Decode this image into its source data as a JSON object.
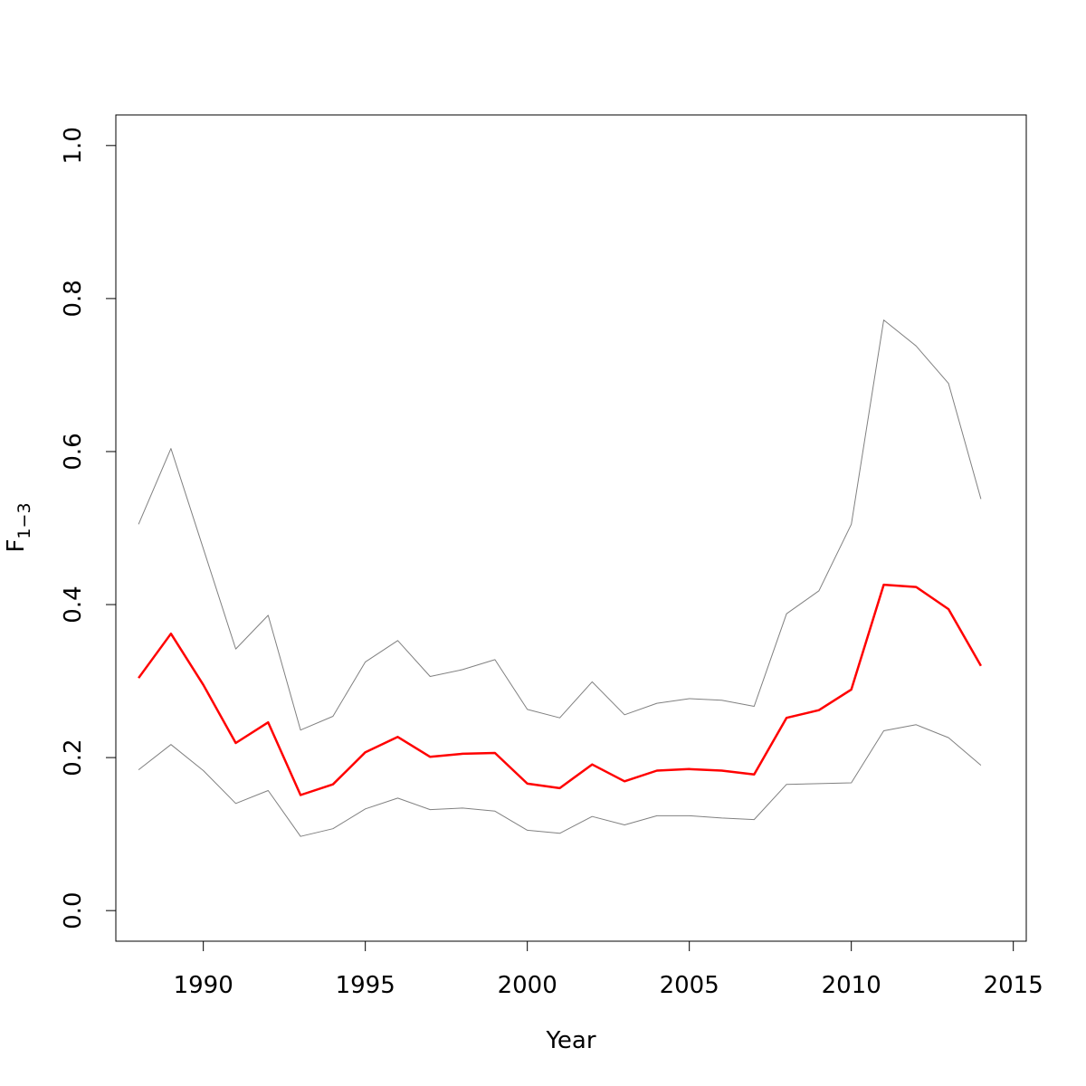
{
  "chart_data": {
    "type": "line",
    "xlabel": "Year",
    "ylabel_main": "F",
    "ylabel_sub": "1−3",
    "xlim": [
      1987.3,
      2015.4
    ],
    "ylim": [
      -0.04,
      1.04
    ],
    "x_ticks": [
      1990,
      1995,
      2000,
      2005,
      2010,
      2015
    ],
    "y_ticks": [
      0.0,
      0.2,
      0.4,
      0.6,
      0.8,
      1.0
    ],
    "x_tick_labels": [
      "1990",
      "1995",
      "2000",
      "2005",
      "2010",
      "2015"
    ],
    "y_tick_labels": [
      "0.0",
      "0.2",
      "0.4",
      "0.6",
      "0.8",
      "1.0"
    ],
    "x": [
      1988,
      1989,
      1990,
      1991,
      1992,
      1993,
      1994,
      1995,
      1996,
      1997,
      1998,
      1999,
      2000,
      2001,
      2002,
      2003,
      2004,
      2005,
      2006,
      2007,
      2008,
      2009,
      2010,
      2011,
      2012,
      2013,
      2014
    ],
    "series": [
      {
        "role": "estimate",
        "color": "#ff0000",
        "values": [
          0.304,
          0.362,
          0.295,
          0.219,
          0.246,
          0.151,
          0.165,
          0.207,
          0.227,
          0.201,
          0.205,
          0.206,
          0.166,
          0.16,
          0.191,
          0.169,
          0.183,
          0.185,
          0.183,
          0.178,
          0.252,
          0.262,
          0.289,
          0.426,
          0.423,
          0.394,
          0.32
        ]
      },
      {
        "role": "upper",
        "color": "#808080",
        "values": [
          0.505,
          0.604,
          0.473,
          0.342,
          0.386,
          0.236,
          0.254,
          0.325,
          0.353,
          0.306,
          0.315,
          0.328,
          0.263,
          0.252,
          0.299,
          0.256,
          0.271,
          0.277,
          0.275,
          0.267,
          0.388,
          0.418,
          0.505,
          0.772,
          0.738,
          0.689,
          0.538
        ]
      },
      {
        "role": "lower",
        "color": "#808080",
        "values": [
          0.184,
          0.217,
          0.183,
          0.14,
          0.157,
          0.097,
          0.107,
          0.133,
          0.147,
          0.132,
          0.134,
          0.13,
          0.105,
          0.101,
          0.123,
          0.112,
          0.124,
          0.124,
          0.121,
          0.119,
          0.165,
          0.166,
          0.167,
          0.235,
          0.243,
          0.226,
          0.19
        ]
      }
    ]
  }
}
